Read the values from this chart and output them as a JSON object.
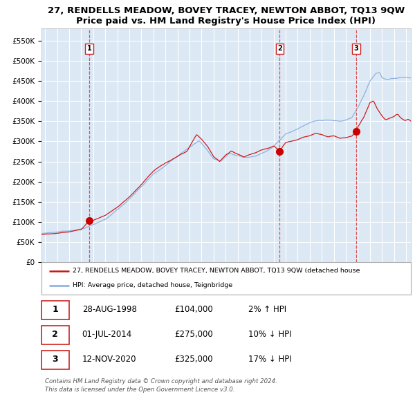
{
  "title": "27, RENDELLS MEADOW, BOVEY TRACEY, NEWTON ABBOT, TQ13 9QW",
  "subtitle": "Price paid vs. HM Land Registry's House Price Index (HPI)",
  "hpi_label": "HPI: Average price, detached house, Teignbridge",
  "house_label": "27, RENDELLS MEADOW, BOVEY TRACEY, NEWTON ABBOT, TQ13 9QW (detached house",
  "background_color": "#dce9f5",
  "plot_bg": "#dce9f5",
  "y_ticks": [
    0,
    50000,
    100000,
    150000,
    200000,
    250000,
    300000,
    350000,
    400000,
    450000,
    500000,
    550000
  ],
  "y_tick_labels": [
    "£0",
    "£50K",
    "£100K",
    "£150K",
    "£200K",
    "£250K",
    "£300K",
    "£350K",
    "£400K",
    "£450K",
    "£500K",
    "£550K"
  ],
  "ylim": [
    0,
    580000
  ],
  "xlim_start": 1994.7,
  "xlim_end": 2025.4,
  "sale_dates": [
    1998.66,
    2014.5,
    2020.87
  ],
  "sale_prices": [
    104000,
    275000,
    325000
  ],
  "sale_labels": [
    "1",
    "2",
    "3"
  ],
  "vline_color": "#dd3333",
  "sale_marker_color": "#cc0000",
  "hpi_line_color": "#88aadd",
  "house_line_color": "#cc1111",
  "legend_entries": [
    {
      "label": "27, RENDELLS MEADOW, BOVEY TRACEY, NEWTON ABBOT, TQ13 9QW (detached house",
      "color": "#cc1111"
    },
    {
      "label": "HPI: Average price, detached house, Teignbridge",
      "color": "#88aadd"
    }
  ],
  "table_rows": [
    {
      "num": "1",
      "date": "28-AUG-1998",
      "price": "£104,000",
      "hpi": "2% ↑ HPI"
    },
    {
      "num": "2",
      "date": "01-JUL-2014",
      "price": "£275,000",
      "hpi": "10% ↓ HPI"
    },
    {
      "num": "3",
      "date": "12-NOV-2020",
      "price": "£325,000",
      "hpi": "17% ↓ HPI"
    }
  ],
  "footer": "Contains HM Land Registry data © Crown copyright and database right 2024.\nThis data is licensed under the Open Government Licence v3.0."
}
